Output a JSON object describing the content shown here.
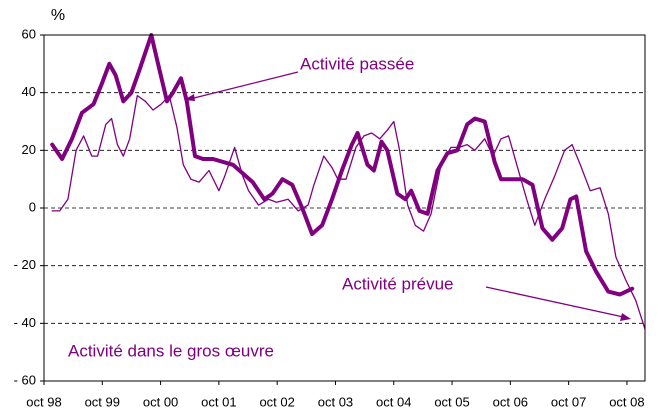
{
  "chart_data": {
    "type": "line",
    "y_label": "%",
    "annotation": "Activité dans le gros œuvre",
    "xlim": [
      1998.75,
      2009.06
    ],
    "xticks": [
      {
        "value": 1998.75,
        "label": "oct 98"
      },
      {
        "value": 1999.75,
        "label": "oct 99"
      },
      {
        "value": 2000.75,
        "label": "oct 00"
      },
      {
        "value": 2001.75,
        "label": "oct 01"
      },
      {
        "value": 2002.75,
        "label": "oct 02"
      },
      {
        "value": 2003.75,
        "label": "oct 03"
      },
      {
        "value": 2004.75,
        "label": "oct 04"
      },
      {
        "value": 2005.75,
        "label": "oct 05"
      },
      {
        "value": 2006.75,
        "label": "oct 06"
      },
      {
        "value": 2007.75,
        "label": "oct 07"
      },
      {
        "value": 2008.75,
        "label": "oct 08"
      }
    ],
    "ylim": [
      -60,
      60
    ],
    "yticks": [
      {
        "value": -60,
        "label": "- 60"
      },
      {
        "value": -40,
        "label": "- 40"
      },
      {
        "value": -20,
        "label": "- 20"
      },
      0,
      20,
      40,
      60
    ],
    "grid": true,
    "series": [
      {
        "name": "Activité passée",
        "color": "#800080",
        "width": 4,
        "x": [
          1998.89,
          1999.06,
          1999.23,
          1999.4,
          1999.6,
          1999.74,
          1999.87,
          1999.98,
          2000.11,
          2000.25,
          2000.39,
          2000.59,
          2000.73,
          2000.86,
          2000.96,
          2001.1,
          2001.2,
          2001.34,
          2001.48,
          2001.65,
          2001.99,
          2002.33,
          2002.53,
          2002.67,
          2002.84,
          2003.01,
          2003.18,
          2003.35,
          2003.52,
          2003.69,
          2003.86,
          2004.03,
          2004.13,
          2004.3,
          2004.41,
          2004.54,
          2004.64,
          2004.81,
          2004.95,
          2005.05,
          2005.19,
          2005.33,
          2005.5,
          2005.67,
          2005.84,
          2006.01,
          2006.14,
          2006.31,
          2006.48,
          2006.59,
          2006.76,
          2006.96,
          2007.13,
          2007.3,
          2007.47,
          2007.64,
          2007.78,
          2007.88,
          2008.05,
          2008.22,
          2008.43,
          2008.63,
          2008.84
        ],
        "values": [
          22,
          17,
          24,
          33,
          36,
          43,
          50,
          46,
          37,
          40,
          48,
          60,
          48,
          37,
          40,
          45,
          37,
          18,
          17,
          17,
          15,
          9,
          3,
          5,
          10,
          8,
          0,
          -9,
          -6,
          3,
          13,
          22,
          26,
          15,
          13,
          23,
          20,
          5,
          3,
          6,
          -1,
          -2,
          13,
          19,
          20,
          29,
          31,
          30,
          16,
          10,
          10,
          10,
          8,
          -7,
          -11,
          -7,
          3,
          4,
          -15,
          -22,
          -29,
          -30,
          -28
        ]
      },
      {
        "name": "Activité prévue",
        "color": "#800080",
        "width": 1.3,
        "x": [
          1998.89,
          1999.02,
          1999.16,
          1999.3,
          1999.43,
          1999.57,
          1999.67,
          1999.81,
          1999.91,
          2000.01,
          2000.11,
          2000.22,
          2000.35,
          2000.49,
          2000.62,
          2000.76,
          2000.9,
          2001.03,
          2001.14,
          2001.27,
          2001.41,
          2001.58,
          2001.75,
          2001.85,
          2002.02,
          2002.16,
          2002.26,
          2002.43,
          2002.6,
          2002.74,
          2002.94,
          2003.11,
          2003.28,
          2003.38,
          2003.55,
          2003.69,
          2003.79,
          2003.93,
          2004.1,
          2004.24,
          2004.37,
          2004.51,
          2004.64,
          2004.75,
          2004.85,
          2004.99,
          2005.12,
          2005.26,
          2005.39,
          2005.56,
          2005.73,
          2005.87,
          2006.01,
          2006.14,
          2006.31,
          2006.45,
          2006.59,
          2006.72,
          2006.86,
          2007.03,
          2007.17,
          2007.34,
          2007.51,
          2007.68,
          2007.81,
          2007.95,
          2008.12,
          2008.29,
          2008.43,
          2008.56,
          2008.73,
          2008.9,
          2009.06
        ],
        "values": [
          -1,
          -1,
          3,
          20,
          25,
          18,
          18,
          29,
          31,
          22,
          18,
          24,
          39,
          37,
          34,
          36,
          39,
          28,
          15,
          10,
          9,
          13,
          6,
          11,
          21,
          11,
          6,
          1,
          3,
          2,
          3,
          -1,
          1,
          8,
          18,
          14,
          10,
          10,
          21,
          25,
          26,
          24,
          27,
          30,
          20,
          1,
          -6,
          -8,
          -2,
          15,
          21,
          21,
          22,
          20,
          24,
          18,
          24,
          25,
          15,
          3,
          -6,
          3,
          11,
          20,
          22,
          15,
          6,
          7,
          -2,
          -17,
          -25,
          -32,
          -42
        ]
      }
    ]
  }
}
